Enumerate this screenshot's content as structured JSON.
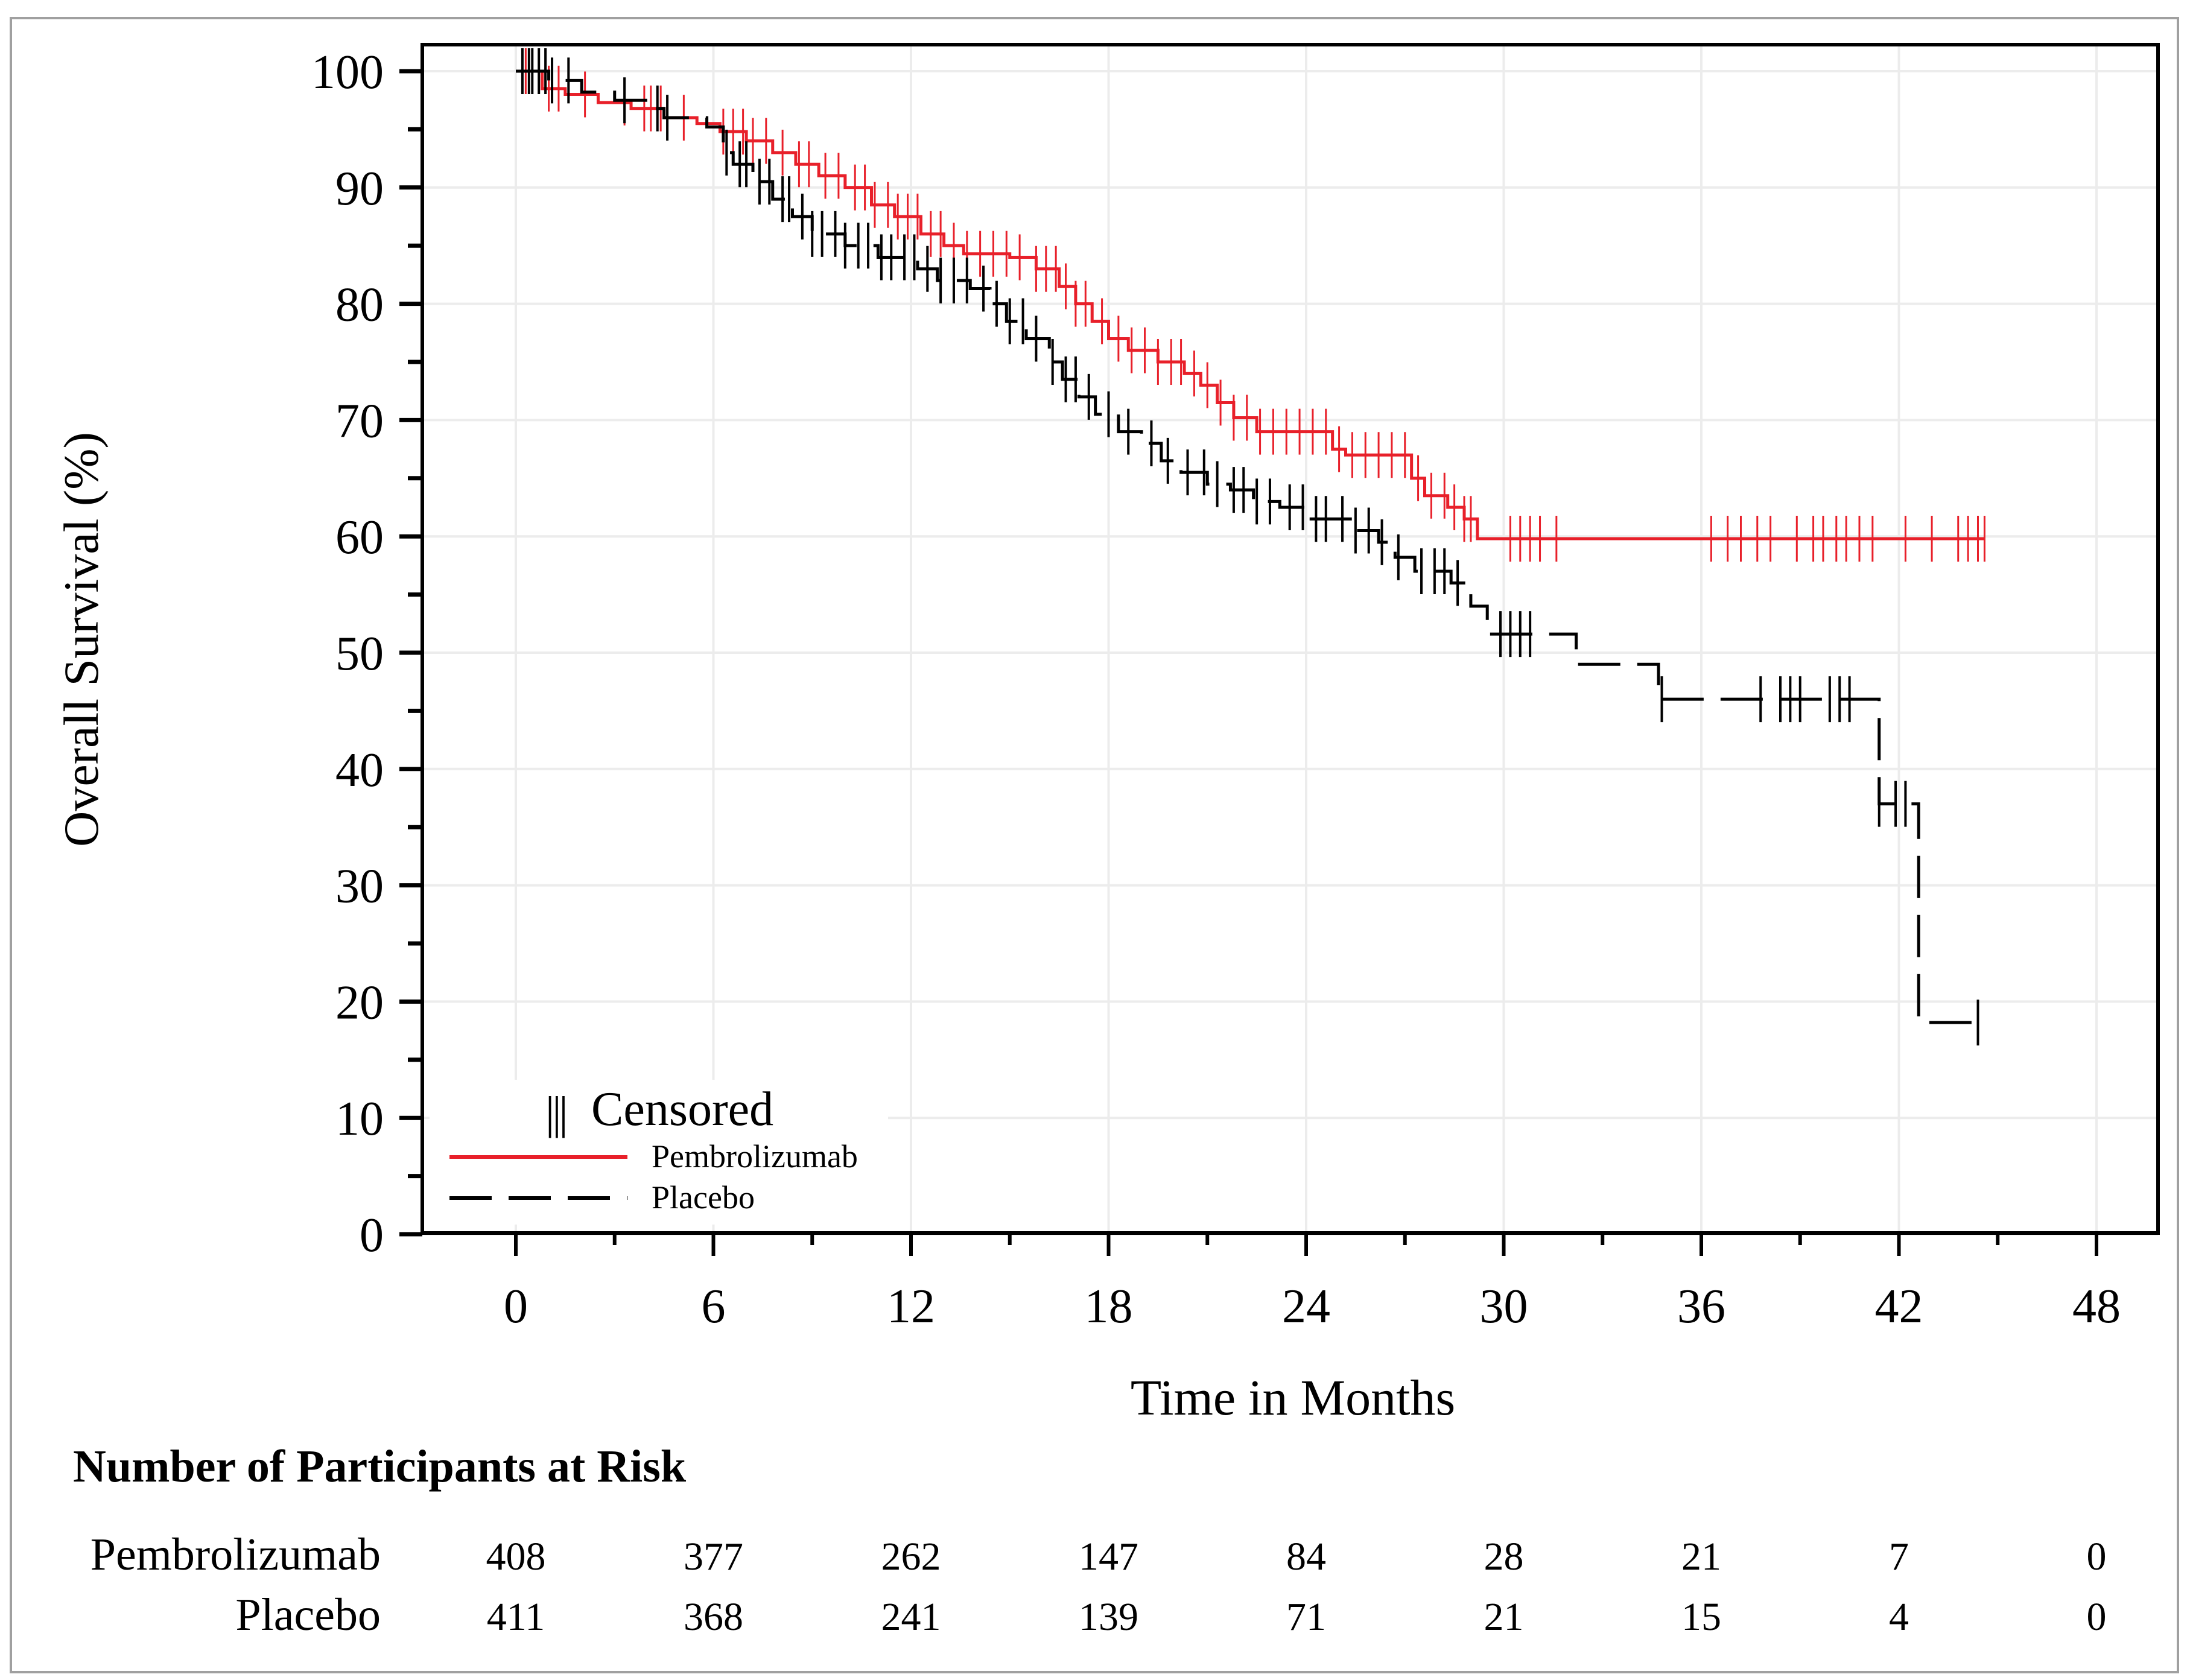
{
  "chart_data": {
    "type": "line",
    "subtype": "kaplan-meier",
    "xlabel": "Time in Months",
    "ylabel": "Overall Survival (%)",
    "xlim": [
      -2.9,
      50.5
    ],
    "ylim": [
      0,
      100
    ],
    "xticks": [
      0,
      6,
      12,
      18,
      24,
      30,
      36,
      42,
      48
    ],
    "yticks": [
      0,
      10,
      20,
      30,
      40,
      50,
      60,
      70,
      80,
      90,
      100
    ],
    "grid": true,
    "legend": {
      "placement": "bottom-left",
      "censored_label": "Censored",
      "censored_symbol": "|||"
    },
    "series": [
      {
        "name": "Pembrolizumab",
        "color": "#e8202a",
        "style": "solid",
        "steps": [
          [
            0,
            100
          ],
          [
            0.8,
            98.5
          ],
          [
            1.5,
            98
          ],
          [
            2.5,
            97.3
          ],
          [
            3.5,
            96.8
          ],
          [
            4.5,
            96
          ],
          [
            5.5,
            95.5
          ],
          [
            6.2,
            94.8
          ],
          [
            7,
            94
          ],
          [
            7.8,
            93
          ],
          [
            8.5,
            92
          ],
          [
            9.2,
            91
          ],
          [
            10,
            90
          ],
          [
            10.8,
            88.5
          ],
          [
            11.5,
            87.5
          ],
          [
            12.3,
            86
          ],
          [
            13,
            85
          ],
          [
            13.6,
            84.3
          ],
          [
            15,
            84
          ],
          [
            15.8,
            83
          ],
          [
            16.5,
            81.5
          ],
          [
            17,
            80
          ],
          [
            17.5,
            78.5
          ],
          [
            18,
            77
          ],
          [
            18.6,
            76
          ],
          [
            19.5,
            75
          ],
          [
            20.3,
            74
          ],
          [
            20.8,
            73
          ],
          [
            21.3,
            71.5
          ],
          [
            21.8,
            70.2
          ],
          [
            22.5,
            69
          ],
          [
            24.8,
            67.5
          ],
          [
            25.2,
            67
          ],
          [
            27.2,
            65
          ],
          [
            27.6,
            63.5
          ],
          [
            28.3,
            62.5
          ],
          [
            28.8,
            61.5
          ],
          [
            29.2,
            59.8
          ],
          [
            44.6,
            59.8
          ]
        ],
        "censored": [
          0.3,
          0.5,
          0.7,
          1.0,
          1.3,
          2.1,
          3.3,
          3.9,
          4.1,
          4.4,
          5.1,
          6.3,
          6.6,
          6.9,
          7.2,
          7.6,
          8.1,
          8.6,
          8.9,
          9.4,
          9.8,
          10.3,
          10.6,
          10.9,
          11.3,
          11.6,
          11.9,
          12.2,
          12.6,
          12.9,
          13.3,
          13.7,
          14.1,
          14.5,
          14.9,
          15.3,
          15.8,
          16.1,
          16.4,
          16.7,
          17.0,
          17.3,
          17.8,
          18.3,
          18.7,
          19.1,
          19.5,
          19.9,
          20.2,
          20.6,
          21.0,
          21.4,
          21.8,
          22.2,
          22.6,
          23.0,
          23.4,
          23.8,
          24.2,
          24.6,
          25.0,
          25.4,
          25.8,
          26.2,
          26.6,
          27.0,
          27.4,
          27.8,
          28.2,
          28.5,
          28.8,
          29.0,
          30.2,
          30.5,
          30.8,
          31.1,
          31.6,
          36.3,
          36.8,
          37.2,
          37.7,
          38.1,
          38.9,
          39.4,
          39.7,
          40.1,
          40.4,
          40.8,
          41.2,
          42.2,
          43.0,
          43.8,
          44.1,
          44.4,
          44.6
        ]
      },
      {
        "name": "Placebo",
        "color": "#000000",
        "style": "dashed",
        "steps": [
          [
            0,
            100
          ],
          [
            1,
            99.2
          ],
          [
            2,
            98.2
          ],
          [
            3,
            97.5
          ],
          [
            4,
            96.8
          ],
          [
            4.5,
            96
          ],
          [
            5.8,
            95.2
          ],
          [
            6.3,
            93
          ],
          [
            6.6,
            92
          ],
          [
            7.2,
            90.5
          ],
          [
            7.8,
            89
          ],
          [
            8.4,
            87.5
          ],
          [
            9,
            86
          ],
          [
            10,
            85
          ],
          [
            11,
            84
          ],
          [
            12.2,
            83
          ],
          [
            12.8,
            82
          ],
          [
            13.8,
            81.3
          ],
          [
            14.4,
            80
          ],
          [
            14.9,
            78.5
          ],
          [
            15.5,
            77
          ],
          [
            16.2,
            75
          ],
          [
            16.6,
            73.5
          ],
          [
            17.1,
            72
          ],
          [
            17.6,
            70.5
          ],
          [
            18.3,
            69
          ],
          [
            19,
            68
          ],
          [
            19.6,
            66.5
          ],
          [
            20.2,
            65.5
          ],
          [
            21,
            64.5
          ],
          [
            21.7,
            64
          ],
          [
            22.4,
            63
          ],
          [
            23.2,
            62.5
          ],
          [
            24,
            61.5
          ],
          [
            25.4,
            60.5
          ],
          [
            26.2,
            59.5
          ],
          [
            26.7,
            58.2
          ],
          [
            27.3,
            57
          ],
          [
            28.4,
            56
          ],
          [
            29,
            54
          ],
          [
            29.5,
            51.6
          ],
          [
            32.2,
            49
          ],
          [
            34.7,
            46
          ],
          [
            41.4,
            37
          ],
          [
            42.6,
            18.2
          ],
          [
            44.4,
            18.2
          ]
        ],
        "censored": [
          0.2,
          0.4,
          0.5,
          0.7,
          0.9,
          1.1,
          1.6,
          3.3,
          4.3,
          4.6,
          6.4,
          6.8,
          7.0,
          7.4,
          7.7,
          8.1,
          8.3,
          8.7,
          9.0,
          9.3,
          9.7,
          10.0,
          10.4,
          10.7,
          11.1,
          11.4,
          11.8,
          12.1,
          12.5,
          12.9,
          13.3,
          13.7,
          14.2,
          14.6,
          15.0,
          15.4,
          15.8,
          16.3,
          16.7,
          17.0,
          17.4,
          18.0,
          18.6,
          19.3,
          19.8,
          20.4,
          20.9,
          21.3,
          21.8,
          22.1,
          22.5,
          22.9,
          23.5,
          23.9,
          24.3,
          24.6,
          25.1,
          25.5,
          25.9,
          26.3,
          26.8,
          27.5,
          27.9,
          28.2,
          28.6,
          29.9,
          30.2,
          30.5,
          30.8,
          34.8,
          37.8,
          38.4,
          38.7,
          39.0,
          39.9,
          40.2,
          40.5,
          41.4,
          41.9,
          42.2,
          44.4
        ]
      }
    ],
    "at_risk": {
      "title": "Number of Participants at Risk",
      "times": [
        0,
        6,
        12,
        18,
        24,
        30,
        36,
        42,
        48
      ],
      "rows": [
        {
          "label": "Pembrolizumab",
          "values": [
            "408",
            "377",
            "262",
            "147",
            "84",
            "28",
            "21",
            "7",
            "0"
          ]
        },
        {
          "label": "Placebo",
          "values": [
            "411",
            "368",
            "241",
            "139",
            "71",
            "21",
            "15",
            "4",
            "0"
          ]
        }
      ]
    }
  }
}
